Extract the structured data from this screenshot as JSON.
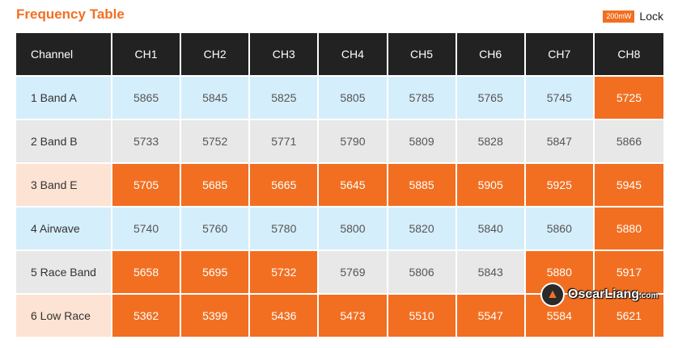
{
  "title": "Frequency Table",
  "legend": {
    "badge": "200mW",
    "text": "Lock"
  },
  "colors": {
    "accent": "#f26f21",
    "header_bg": "#222222",
    "band_a": "#d5eefb",
    "grey": "#e8e8e8",
    "peach": "#fde3d3"
  },
  "table": {
    "headers": [
      "Channel",
      "CH1",
      "CH2",
      "CH3",
      "CH4",
      "CH5",
      "CH6",
      "CH7",
      "CH8"
    ],
    "rows": [
      {
        "label": "1 Band A",
        "style": "blue",
        "values": [
          "5865",
          "5845",
          "5825",
          "5805",
          "5785",
          "5765",
          "5745",
          "5725"
        ],
        "highlight": [
          false,
          false,
          false,
          false,
          false,
          false,
          false,
          true
        ]
      },
      {
        "label": "2 Band B",
        "style": "grey",
        "values": [
          "5733",
          "5752",
          "5771",
          "5790",
          "5809",
          "5828",
          "5847",
          "5866"
        ],
        "highlight": [
          false,
          false,
          false,
          false,
          false,
          false,
          false,
          false
        ]
      },
      {
        "label": "3 Band E",
        "style": "peach",
        "values": [
          "5705",
          "5685",
          "5665",
          "5645",
          "5885",
          "5905",
          "5925",
          "5945"
        ],
        "highlight": [
          true,
          true,
          true,
          true,
          true,
          true,
          true,
          true
        ]
      },
      {
        "label": "4 Airwave",
        "style": "blue",
        "values": [
          "5740",
          "5760",
          "5780",
          "5800",
          "5820",
          "5840",
          "5860",
          "5880"
        ],
        "highlight": [
          false,
          false,
          false,
          false,
          false,
          false,
          false,
          true
        ]
      },
      {
        "label": "5 Race Band",
        "style": "grey",
        "values": [
          "5658",
          "5695",
          "5732",
          "5769",
          "5806",
          "5843",
          "5880",
          "5917"
        ],
        "highlight": [
          true,
          true,
          true,
          false,
          false,
          false,
          true,
          true
        ]
      },
      {
        "label": "6 Low Race",
        "style": "peach",
        "values": [
          "5362",
          "5399",
          "5436",
          "5473",
          "5510",
          "5547",
          "5584",
          "5621"
        ],
        "highlight": [
          true,
          true,
          true,
          true,
          true,
          true,
          true,
          true
        ]
      }
    ]
  },
  "watermark": {
    "name": "OscarLiang",
    "suffix": ".com",
    "logo_icon": "bat-icon"
  }
}
